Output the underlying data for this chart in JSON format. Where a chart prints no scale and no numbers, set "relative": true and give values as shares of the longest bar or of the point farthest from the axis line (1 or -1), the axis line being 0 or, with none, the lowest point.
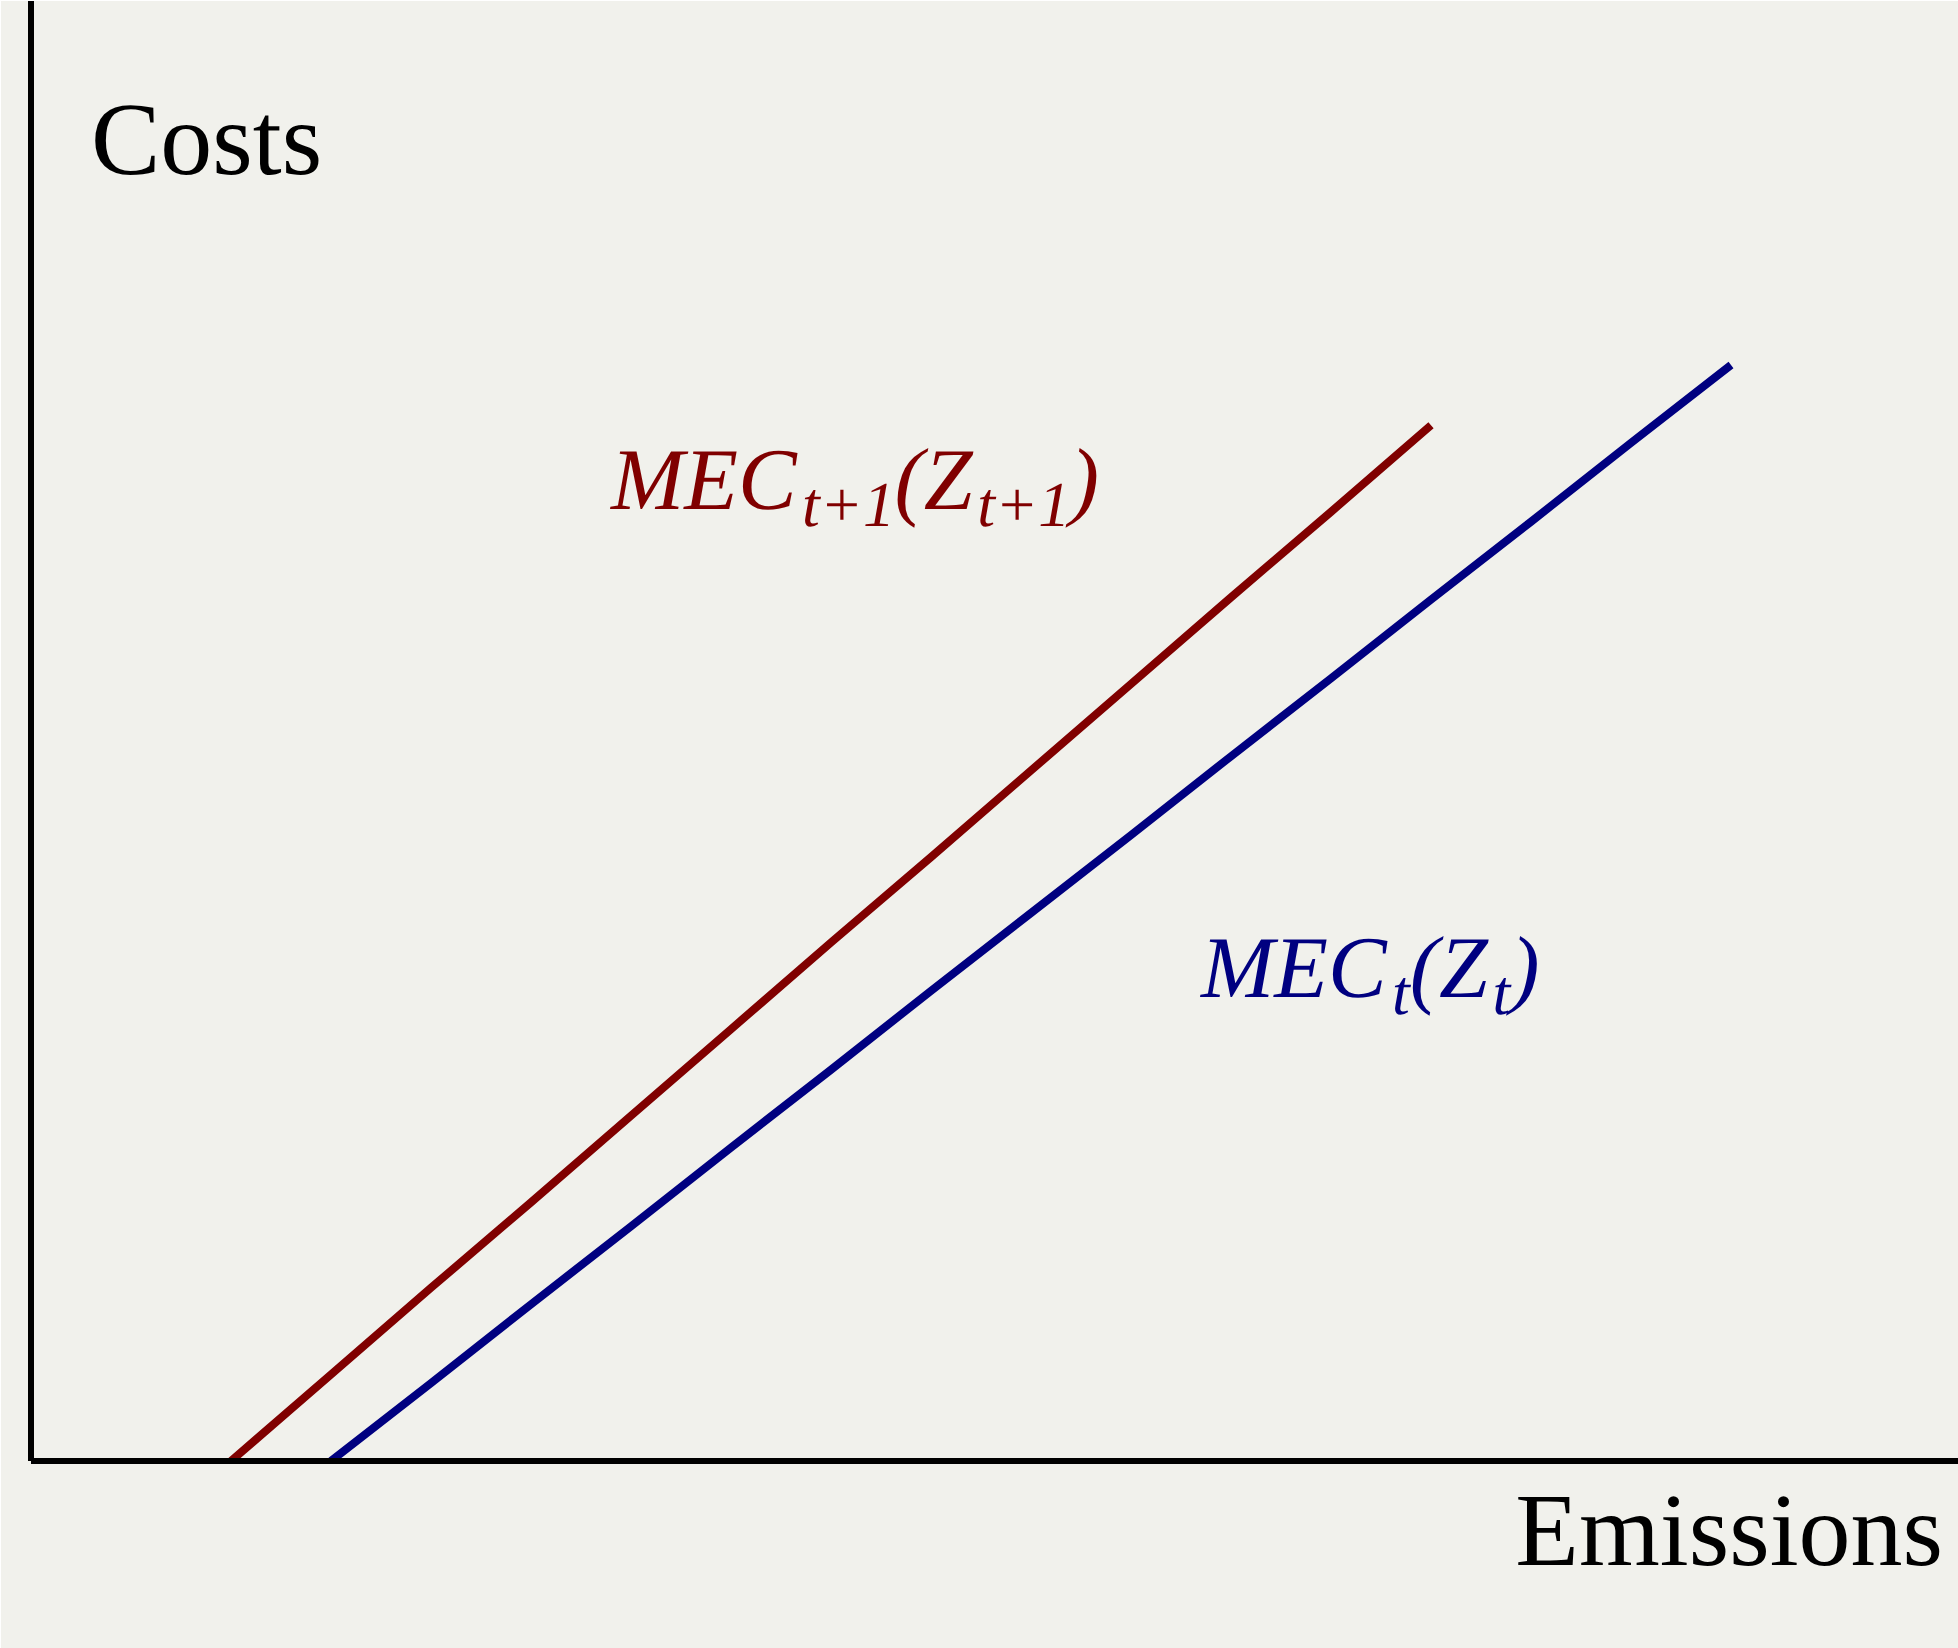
{
  "chart_data": {
    "type": "line",
    "relative": true,
    "xlabel": "Emissions",
    "ylabel": "Costs",
    "marker": "none",
    "line_style": "solid",
    "categories": [
      null,
      null,
      null,
      null,
      null,
      null,
      null,
      null,
      null,
      null,
      null,
      null,
      null,
      null,
      null,
      null,
      null,
      null,
      null,
      null
    ],
    "series": [
      {
        "name": "MEC$_{t+1}$(Z$_{t+1}$)",
        "color": "#800000",
        "values": [
          null,
          null,
          0,
          0.079,
          0.158,
          0.236,
          0.315,
          0.394,
          0.473,
          0.551,
          0.63,
          0.709,
          0.788,
          0.866,
          0.945,
          null,
          null,
          null,
          null,
          null
        ]
      },
      {
        "name": "MEC$_{t}$(Z$_{t}$)",
        "color": "#000080",
        "values": [
          null,
          null,
          null,
          0,
          0.071,
          0.143,
          0.214,
          0.286,
          0.357,
          0.429,
          0.5,
          0.571,
          0.643,
          0.714,
          0.786,
          0.857,
          0.929,
          1,
          null,
          null
        ]
      }
    ]
  }
}
